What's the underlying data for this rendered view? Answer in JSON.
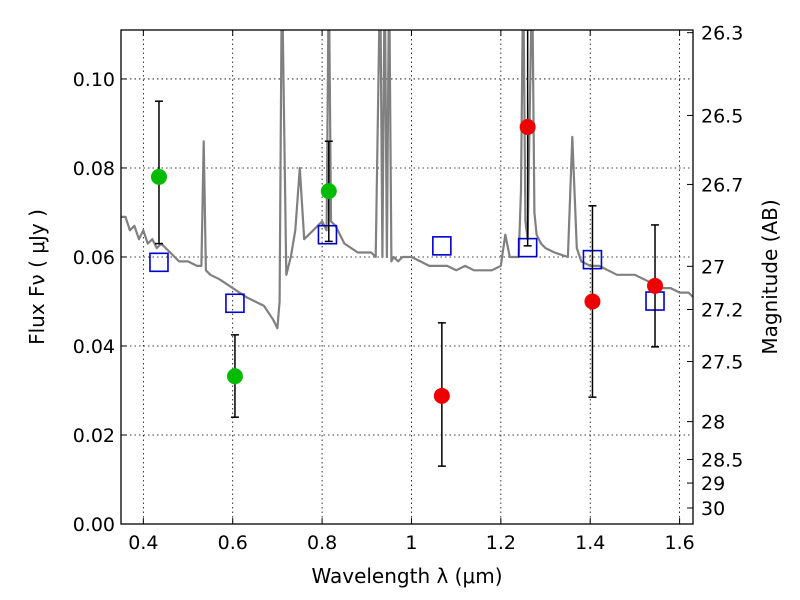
{
  "chart_data": {
    "type": "scatter",
    "xlabel": "Wavelength  λ (μm)",
    "ylabel": "Flux  Fν  ( μJy )",
    "y2label": "Magnitude (AB)",
    "xlim": [
      0.35,
      1.63
    ],
    "ylim": [
      0.0,
      0.111
    ],
    "grid": true,
    "x_ticks": [
      0.4,
      0.6,
      0.8,
      1.0,
      1.2,
      1.4,
      1.6
    ],
    "x_tick_labels": [
      "0.4",
      "0.6",
      "0.8",
      "1",
      "1.2",
      "1.4",
      "1.6"
    ],
    "y_ticks": [
      0.0,
      0.02,
      0.04,
      0.06,
      0.08,
      0.1
    ],
    "y_tick_labels": [
      "0.00",
      "0.02",
      "0.04",
      "0.06",
      "0.08",
      "0.10"
    ],
    "y2_ticks": [
      {
        "label": "26.3",
        "flux": 0.1104
      },
      {
        "label": "26.5",
        "flux": 0.0918
      },
      {
        "label": "26.7",
        "flux": 0.0763
      },
      {
        "label": "27",
        "flux": 0.0579
      },
      {
        "label": "27.2",
        "flux": 0.0482
      },
      {
        "label": "27.5",
        "flux": 0.0365
      },
      {
        "label": "28",
        "flux": 0.023
      },
      {
        "label": "28.5",
        "flux": 0.0145
      },
      {
        "label": "29",
        "flux": 0.0092
      },
      {
        "label": "30",
        "flux": 0.0036
      }
    ],
    "series": [
      {
        "kind": "line",
        "color": "#808080",
        "x": [
          0.35,
          0.36,
          0.37,
          0.38,
          0.39,
          0.4,
          0.41,
          0.42,
          0.43,
          0.44,
          0.45,
          0.46,
          0.48,
          0.5,
          0.52,
          0.53,
          0.535,
          0.54,
          0.55,
          0.57,
          0.6,
          0.63,
          0.65,
          0.67,
          0.69,
          0.7,
          0.705,
          0.71,
          0.72,
          0.73,
          0.74,
          0.75,
          0.76,
          0.78,
          0.8,
          0.81,
          0.815,
          0.82,
          0.83,
          0.85,
          0.88,
          0.91,
          0.92,
          0.93,
          0.935,
          0.94,
          0.945,
          0.95,
          0.955,
          0.96,
          0.97,
          0.98,
          1.0,
          1.02,
          1.04,
          1.06,
          1.08,
          1.1,
          1.12,
          1.14,
          1.16,
          1.18,
          1.2,
          1.21,
          1.22,
          1.24,
          1.245,
          1.25,
          1.255,
          1.26,
          1.27,
          1.275,
          1.28,
          1.29,
          1.3,
          1.32,
          1.35,
          1.36,
          1.37,
          1.38,
          1.4,
          1.42,
          1.44,
          1.46,
          1.48,
          1.5,
          1.52,
          1.54,
          1.56,
          1.58,
          1.6,
          1.62,
          1.63
        ],
        "y": [
          0.069,
          0.069,
          0.066,
          0.067,
          0.064,
          0.066,
          0.063,
          0.064,
          0.062,
          0.063,
          0.062,
          0.061,
          0.059,
          0.059,
          0.058,
          0.058,
          0.086,
          0.057,
          0.056,
          0.055,
          0.053,
          0.051,
          0.05,
          0.049,
          0.046,
          0.044,
          0.05,
          0.125,
          0.056,
          0.06,
          0.066,
          0.08,
          0.064,
          0.066,
          0.068,
          0.066,
          0.125,
          0.068,
          0.067,
          0.063,
          0.061,
          0.061,
          0.06,
          0.125,
          0.06,
          0.125,
          0.06,
          0.125,
          0.059,
          0.06,
          0.059,
          0.06,
          0.06,
          0.059,
          0.058,
          0.058,
          0.058,
          0.057,
          0.058,
          0.057,
          0.057,
          0.057,
          0.058,
          0.065,
          0.06,
          0.06,
          0.075,
          0.125,
          0.068,
          0.064,
          0.125,
          0.07,
          0.065,
          0.063,
          0.062,
          0.061,
          0.06,
          0.087,
          0.062,
          0.059,
          0.058,
          0.058,
          0.057,
          0.056,
          0.056,
          0.056,
          0.055,
          0.054,
          0.053,
          0.053,
          0.052,
          0.052,
          0.051
        ]
      },
      {
        "kind": "open-square",
        "color": "#0000cc",
        "x": [
          0.435,
          0.605,
          0.812,
          1.068,
          1.26,
          1.405,
          1.545
        ],
        "y": [
          0.0588,
          0.0496,
          0.065,
          0.0625,
          0.0621,
          0.0594,
          0.0501
        ]
      },
      {
        "kind": "filled-circle",
        "color": "#00bb00",
        "x": [
          0.435,
          0.605,
          0.815
        ],
        "y": [
          0.078,
          0.0332,
          0.0748
        ],
        "err_low": [
          0.063,
          0.024,
          0.0635
        ],
        "err_high": [
          0.095,
          0.0425,
          0.086
        ]
      },
      {
        "kind": "filled-circle",
        "color": "#ee0000",
        "x": [
          1.068,
          1.26,
          1.405,
          1.545
        ],
        "y": [
          0.0288,
          0.0892,
          0.05,
          0.0535
        ],
        "err_low": [
          0.013,
          0.0625,
          0.0285,
          0.0398
        ],
        "err_high": [
          0.0452,
          0.111,
          0.0715,
          0.0672
        ]
      }
    ]
  }
}
